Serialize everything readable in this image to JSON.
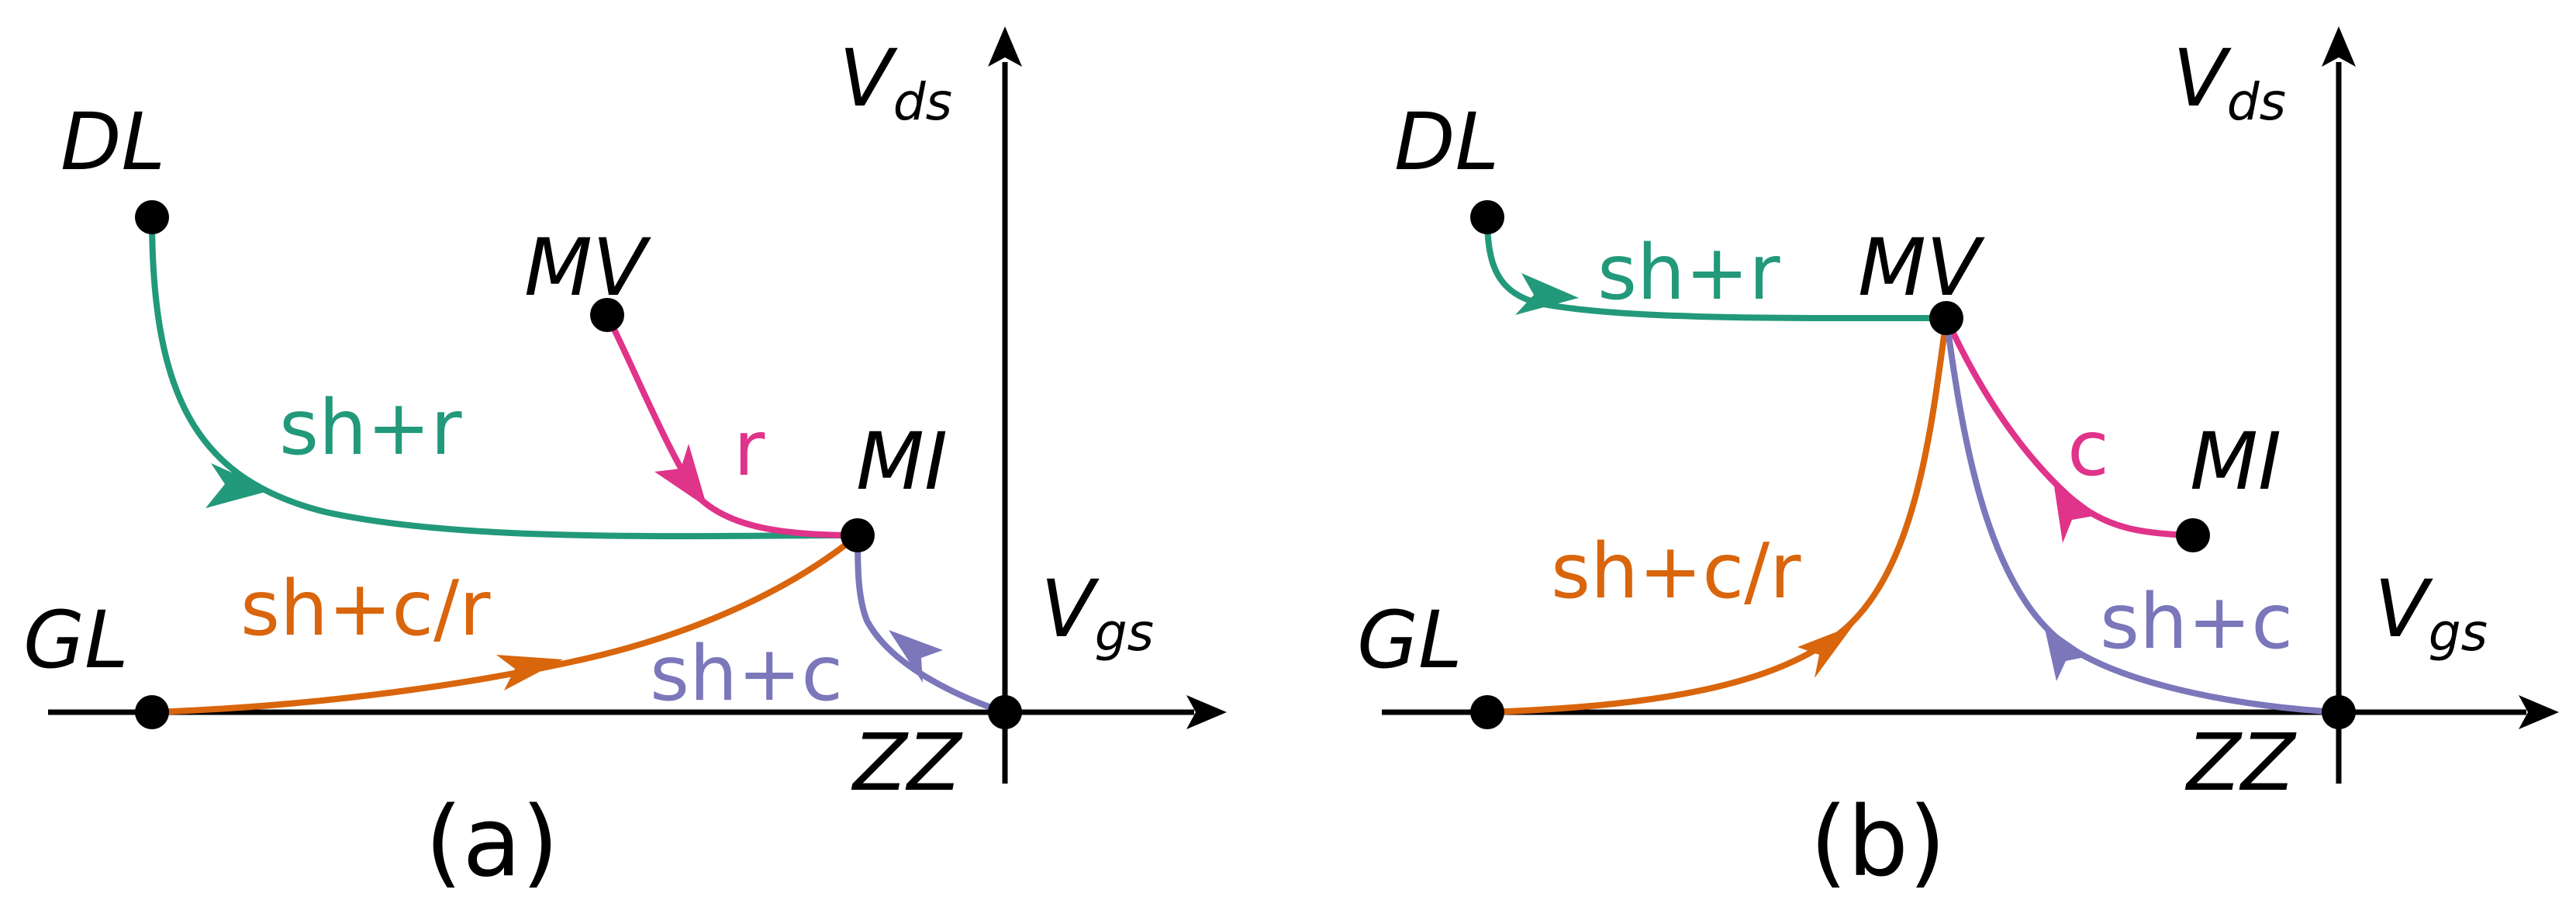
{
  "colors": {
    "green": "#22997a",
    "pink": "#e0338a",
    "orange": "#d9650c",
    "purple": "#7b77ba",
    "black": "#000000"
  },
  "panels": [
    {
      "caption": "(a)",
      "axis_x_label": "V",
      "axis_x_sub": "gs",
      "axis_y_label": "V",
      "axis_y_sub": "ds",
      "nodes": [
        "DL",
        "MV",
        "MI",
        "GL",
        "ZZ"
      ],
      "transitions": [
        {
          "from": "DL",
          "to": "MI",
          "label": "sh+r",
          "color": "green"
        },
        {
          "from": "MV",
          "to": "MI",
          "label": "r",
          "color": "pink"
        },
        {
          "from": "GL",
          "to": "MI",
          "label": "sh+c/r",
          "color": "orange"
        },
        {
          "from": "ZZ",
          "to": "MI",
          "label": "sh+c",
          "color": "purple"
        }
      ]
    },
    {
      "caption": "(b)",
      "axis_x_label": "V",
      "axis_x_sub": "gs",
      "axis_y_label": "V",
      "axis_y_sub": "ds",
      "nodes": [
        "DL",
        "MV",
        "MI",
        "GL",
        "ZZ"
      ],
      "transitions": [
        {
          "from": "DL",
          "to": "MV",
          "label": "sh+r",
          "color": "green"
        },
        {
          "from": "MI",
          "to": "MV",
          "label": "c",
          "color": "pink"
        },
        {
          "from": "GL",
          "to": "MV",
          "label": "sh+c/r",
          "color": "orange"
        },
        {
          "from": "ZZ",
          "to": "MV",
          "label": "sh+c",
          "color": "purple"
        }
      ]
    }
  ]
}
